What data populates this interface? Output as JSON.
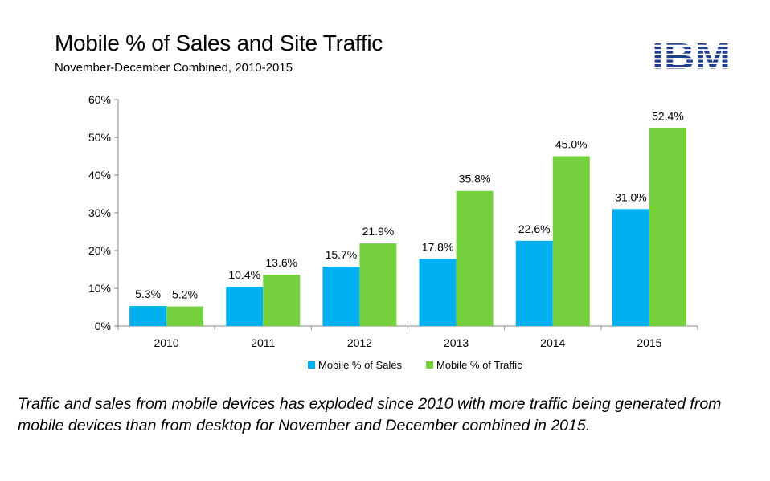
{
  "header": {
    "title": "Mobile % of Sales and Site Traffic",
    "subtitle": "November-December Combined, 2010-2015",
    "logo_text": "IBM"
  },
  "caption": "Traffic and sales from mobile devices has exploded since 2010 with more traffic being generated from mobile devices than from desktop for November and December combined in 2015.",
  "colors": {
    "sales": "#00b0f0",
    "traffic": "#74d13d",
    "axis": "#888888",
    "logo": "#1f3e8c"
  },
  "chart_data": {
    "type": "bar",
    "categories": [
      "2010",
      "2011",
      "2012",
      "2013",
      "2014",
      "2015"
    ],
    "series": [
      {
        "name": "Mobile % of Sales",
        "values": [
          5.3,
          10.4,
          15.7,
          17.8,
          22.6,
          31.0
        ],
        "labels": [
          "5.3%",
          "10.4%",
          "15.7%",
          "17.8%",
          "22.6%",
          "31.0%"
        ]
      },
      {
        "name": "Mobile % of Traffic",
        "values": [
          5.2,
          13.6,
          21.9,
          35.8,
          45.0,
          52.4
        ],
        "labels": [
          "5.2%",
          "13.6%",
          "21.9%",
          "35.8%",
          "45.0%",
          "52.4%"
        ]
      }
    ],
    "yticks": [
      0,
      10,
      20,
      30,
      40,
      50,
      60
    ],
    "ytick_labels": [
      "0%",
      "10%",
      "20%",
      "30%",
      "40%",
      "50%",
      "60%"
    ],
    "ylim": [
      0,
      60
    ],
    "grid": true,
    "legend": "bottom"
  }
}
